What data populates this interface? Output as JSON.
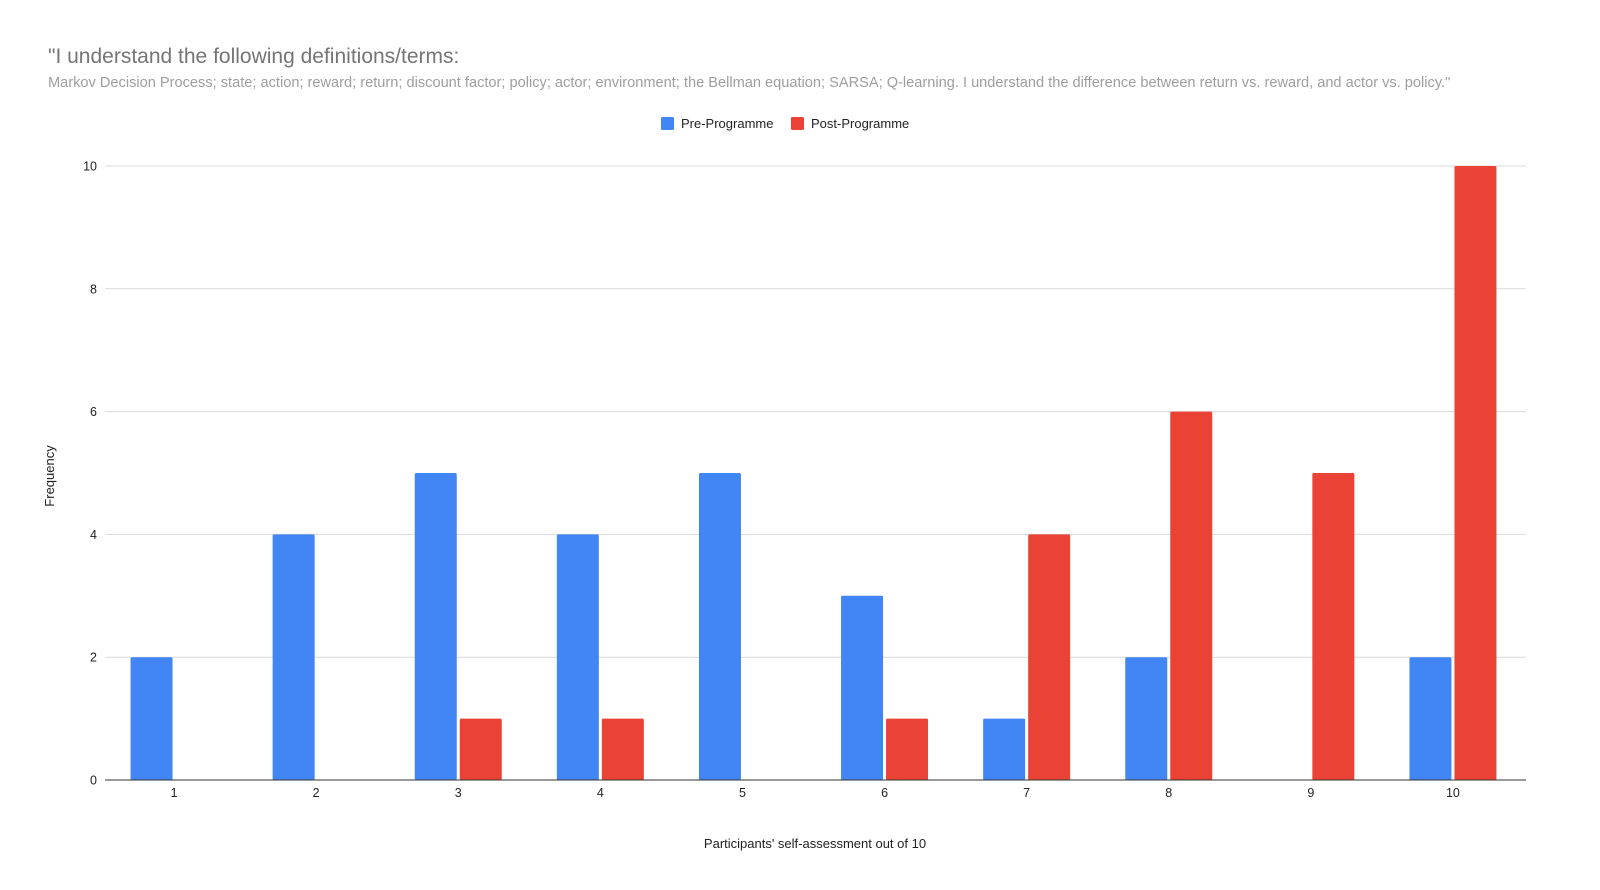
{
  "chart_data": {
    "type": "bar",
    "title": "\"I understand the following definitions/terms:",
    "subtitle": "Markov Decision Process; state; action; reward; return; discount factor; policy; actor; environment; the Bellman equation; SARSA; Q-learning.  I understand the difference between return vs. reward, and actor vs. policy.\"",
    "xlabel": "Participants' self-assessment out of 10",
    "ylabel": "Frequency",
    "categories": [
      "1",
      "2",
      "3",
      "4",
      "5",
      "6",
      "7",
      "8",
      "9",
      "10"
    ],
    "series": [
      {
        "name": "Pre-Programme",
        "color": "#4285f4",
        "values": [
          2,
          4,
          5,
          4,
          5,
          3,
          1,
          2,
          0,
          2
        ]
      },
      {
        "name": "Post-Programme",
        "color": "#ea4335",
        "values": [
          0,
          0,
          1,
          1,
          0,
          1,
          4,
          6,
          5,
          10
        ]
      }
    ],
    "ylim": [
      0,
      10
    ],
    "yticks": [
      "0",
      "2",
      "4",
      "6",
      "8",
      "10"
    ],
    "grid": true,
    "legend_position": "top-center"
  }
}
